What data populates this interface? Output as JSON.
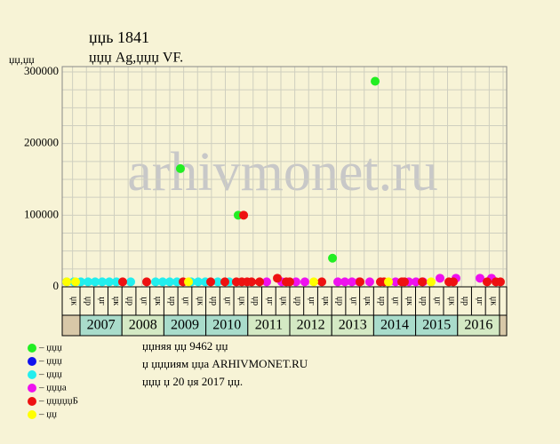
{
  "chart_data": {
    "type": "scatter",
    "title": "џџь 1841",
    "subtitle": "џџџ Ag,џџџ VF.",
    "y_label": "џџ,џџ",
    "watermark": "arhivmonet.ru",
    "xlim": [
      0,
      32
    ],
    "ylim": [
      0,
      300000
    ],
    "yticks": [
      0,
      100000,
      200000,
      300000
    ],
    "ygrid": [
      25000,
      50000,
      75000,
      125000,
      150000,
      175000,
      225000,
      250000,
      275000
    ],
    "grid": true,
    "quarter_labels": [
      "џк",
      "џр",
      "џг",
      "џк",
      "џр",
      "џг",
      "џк",
      "џр",
      "џг",
      "џк",
      "џр",
      "џг",
      "џк",
      "џр",
      "џг",
      "џк",
      "џр",
      "џг",
      "џк",
      "џр",
      "џг",
      "џк",
      "џр",
      "џг",
      "џк",
      "џр",
      "џг",
      "џк",
      "џр",
      "џг",
      "џк"
    ],
    "years": [
      "2007",
      "2008",
      "2009",
      "2010",
      "2011",
      "2012",
      "2013",
      "2014",
      "2015",
      "2016"
    ],
    "series": [
      {
        "name": "– џџџ",
        "color": "#22ee22",
        "x": [
          8.51,
          12.67,
          19.46,
          22.53
        ],
        "values": [
          165000,
          100000,
          40000,
          287000
        ]
      },
      {
        "name": "– џџџ",
        "color": "#1111ee",
        "x": [],
        "values": []
      },
      {
        "name": "– џџџ",
        "color": "#22eeee",
        "x": [
          0.32,
          0.83,
          1.34,
          1.86,
          2.37,
          2.88,
          3.39,
          3.9,
          4.93,
          6.72,
          7.23,
          7.74,
          8.26,
          9.28,
          9.79,
          10.3,
          11.2,
          12.03
        ],
        "values": [
          7000,
          7000,
          7000,
          7000,
          7000,
          7000,
          7000,
          7000,
          7000,
          7000,
          7000,
          7000,
          7000,
          7000,
          7000,
          7000,
          7000,
          7000
        ]
      },
      {
        "name": "– џџџа",
        "color": "#ee11ee",
        "x": [
          14.72,
          15.81,
          16.83,
          17.47,
          19.84,
          20.35,
          20.86,
          21.38,
          22.14,
          24.0,
          24.96,
          25.47,
          25.98,
          27.2,
          28.35,
          30.08,
          30.91
        ],
        "values": [
          7000,
          7000,
          7000,
          7000,
          7000,
          7000,
          7000,
          7000,
          7000,
          7000,
          7000,
          7000,
          7000,
          12000,
          12000,
          12000,
          12000
        ]
      },
      {
        "name": "– џџџџџБ",
        "color": "#ee1111",
        "x": [
          4.35,
          6.08,
          8.7,
          10.69,
          11.71,
          12.54,
          12.93,
          13.06,
          13.31,
          13.63,
          14.21,
          15.49,
          16.13,
          16.38,
          18.69,
          21.44,
          22.91,
          23.17,
          24.45,
          24.64,
          25.92,
          27.84,
          28.16,
          30.59,
          31.23,
          31.55
        ],
        "values": [
          7000,
          7000,
          7000,
          7000,
          7000,
          7000,
          7000,
          100000,
          7000,
          7000,
          7000,
          12000,
          7000,
          7000,
          7000,
          7000,
          7000,
          7000,
          7000,
          7000,
          7000,
          7000,
          7000,
          7000,
          7000,
          7000
        ]
      },
      {
        "name": "– џџ",
        "color": "#ffff00",
        "x": [
          0.32,
          0.96,
          9.09,
          18.11,
          23.49,
          26.56
        ],
        "values": [
          7000,
          7000,
          7000,
          7000,
          7000,
          7000
        ]
      }
    ],
    "notes": [
      "џџняя џџ 9462 џџ",
      "џ џџџиям џџа ARHIVMONET.RU",
      "џџџ џ 20 џя 2017 џџ."
    ]
  }
}
